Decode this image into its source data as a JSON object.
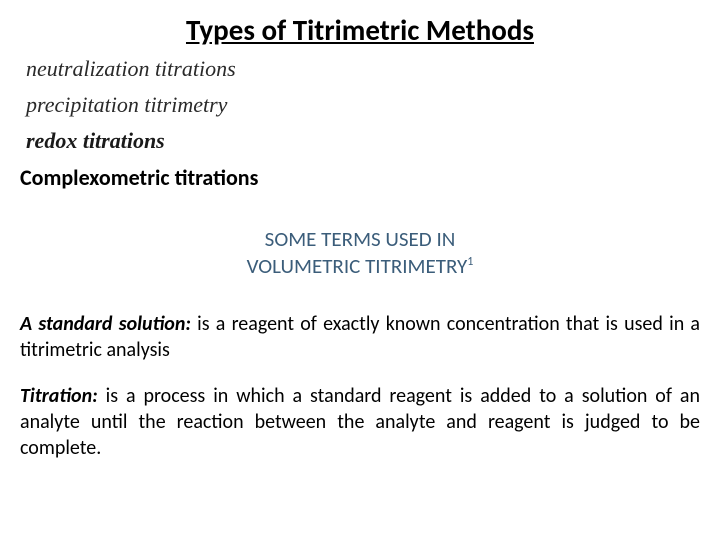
{
  "title": "Types of Titrimetric  Methods",
  "methods": {
    "neutralization": "neutralization titrations",
    "precipitation": "precipitation titrimetry",
    "redox": "redox titrations"
  },
  "complexometric": "Complexometric titrations",
  "subheader": {
    "line1": "SOME TERMS USED IN",
    "line2": "VOLUMETRIC TITRIMETRY",
    "superscript": "1"
  },
  "definitions": {
    "standard_solution": {
      "term": "A standard solution:",
      "text": " is a reagent of exactly known concentration that is used in a titrimetric analysis"
    },
    "titration": {
      "term": "Titration:",
      "text": " is a process in which a standard reagent is added to a solution of an analyte until the reaction between the analyte and reagent is judged to be complete."
    }
  },
  "colors": {
    "text": "#000000",
    "subheader": "#3b5d7a",
    "method_grey": "#2a2a2a",
    "background": "#ffffff"
  },
  "fonts": {
    "title_size": 29,
    "method_size": 22,
    "subheader_size": 21,
    "body_size": 20
  }
}
